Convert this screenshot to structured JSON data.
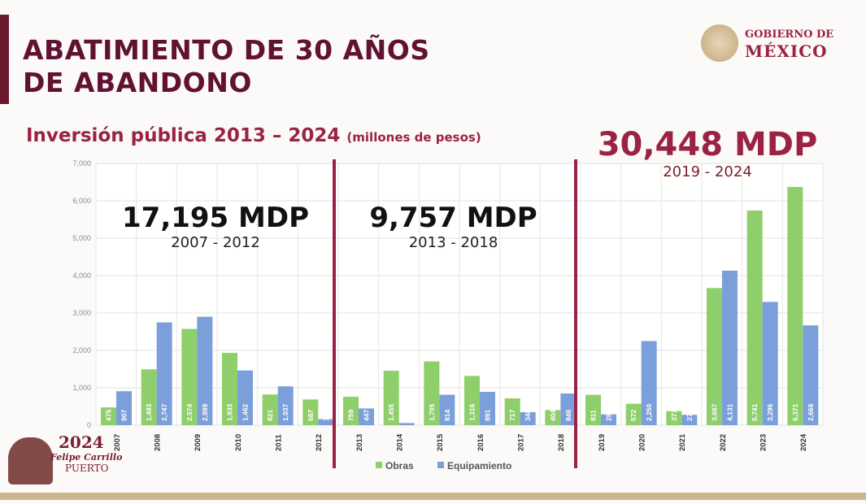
{
  "header": {
    "title_line1": "ABATIMIENTO DE 30 AÑOS",
    "title_line2": "DE ABANDONO",
    "subtitle": "Inversión pública 2013 – 2024",
    "subtitle_units": "(millones de pesos)"
  },
  "logo": {
    "line1": "GOBIERNO DE",
    "line2": "MÉXICO"
  },
  "footer_logo": {
    "year": "2024",
    "name": "Felipe Carrillo",
    "place": "PUERTO"
  },
  "annotations": [
    {
      "total": "17,195 MDP",
      "period": "2007 - 2012",
      "color": "#111111"
    },
    {
      "total": "9,757 MDP",
      "period": "2013 - 2018",
      "color": "#111111"
    },
    {
      "total": "30,448 MDP",
      "period": "2019 - 2024",
      "color": "#9b2247"
    }
  ],
  "colors": {
    "obras": "#8fcf6b",
    "equipamiento": "#7b9fdb",
    "divider": "#9b2247"
  },
  "chart_data": {
    "type": "bar",
    "categories": [
      "2007",
      "2008",
      "2009",
      "2010",
      "2011",
      "2012",
      "2013",
      "2014",
      "2015",
      "2016",
      "2017",
      "2018",
      "2019",
      "2020",
      "2021",
      "2022",
      "2023",
      "2024"
    ],
    "series": [
      {
        "name": "Obras",
        "values": [
          475,
          1493,
          2574,
          1933,
          821,
          687,
          759,
          1455,
          1705,
          1316,
          717,
          404,
          811,
          572,
          377,
          3667,
          5741,
          6371
        ],
        "labels": [
          "475",
          "1,493",
          "2,574",
          "1,933",
          "821",
          "687",
          "759",
          "1,455",
          "1,705",
          "1,316",
          "717",
          "404",
          "811",
          "572",
          "377",
          "3,667",
          "5,741",
          "6,371"
        ]
      },
      {
        "name": "Equipamiento",
        "values": [
          907,
          2747,
          2899,
          1462,
          1037,
          160,
          447,
          56,
          814,
          891,
          348,
          846,
          289,
          2250,
          276,
          4131,
          3296,
          2668
        ],
        "labels": [
          "907",
          "2,747",
          "2,899",
          "1,462",
          "1,037",
          "160",
          "447",
          "56",
          "814",
          "891",
          "348",
          "846",
          "289",
          "2,250",
          "276",
          "4,131",
          "3,296",
          "2,668"
        ]
      }
    ],
    "yticks": [
      "0",
      "1,000",
      "2,000",
      "3,000",
      "4,000",
      "5,000",
      "6,000",
      "7,000"
    ],
    "ylim": [
      0,
      7000
    ],
    "grid": true,
    "legend": "bottom"
  }
}
